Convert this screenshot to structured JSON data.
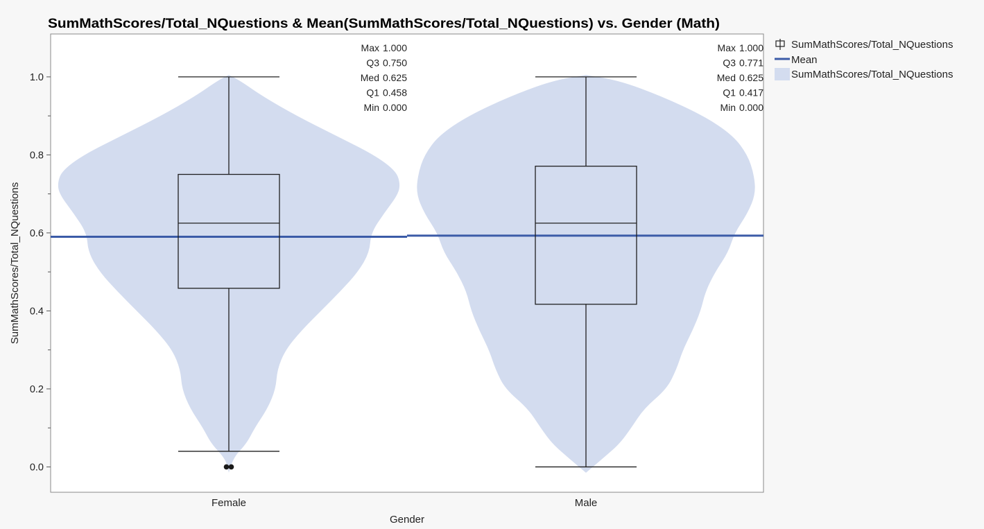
{
  "chart_data": {
    "type": "box",
    "title": "SumMathScores/Total_NQuestions & Mean(SumMathScores/Total_NQuestions) vs. Gender (Math)",
    "xlabel": "Gender",
    "ylabel": "SumMathScores/Total_NQuestions",
    "ylim": [
      -0.065,
      1.11
    ],
    "yticks": [
      "0.0",
      "0.2",
      "0.4",
      "0.6",
      "0.8",
      "1.0"
    ],
    "categories": [
      "Female",
      "Male"
    ],
    "groups": [
      {
        "name": "Female",
        "whisker_low": 0.04,
        "q1": 0.458,
        "median": 0.625,
        "q3": 0.75,
        "whisker_high": 1.0,
        "mean": 0.59,
        "outliers": [
          0.0,
          0.0
        ],
        "stats": [
          {
            "label": "Max",
            "value": "1.000"
          },
          {
            "label": "Q3",
            "value": "0.750"
          },
          {
            "label": "Med",
            "value": "0.625"
          },
          {
            "label": "Q1",
            "value": "0.458"
          },
          {
            "label": "Min",
            "value": "0.000"
          }
        ],
        "violin_y": [
          -0.015,
          0.02,
          0.06,
          0.1,
          0.15,
          0.2,
          0.25,
          0.3,
          0.35,
          0.4,
          0.45,
          0.5,
          0.55,
          0.6,
          0.65,
          0.7,
          0.73,
          0.76,
          0.8,
          0.85,
          0.9,
          0.95,
          0.99,
          1.005
        ],
        "violin_w": [
          0.0,
          0.02,
          0.11,
          0.16,
          0.24,
          0.29,
          0.3,
          0.35,
          0.45,
          0.57,
          0.69,
          0.8,
          0.87,
          0.88,
          0.96,
          1.05,
          1.06,
          1.03,
          0.9,
          0.66,
          0.42,
          0.21,
          0.07,
          0.0
        ]
      },
      {
        "name": "Male",
        "whisker_low": 0.0,
        "q1": 0.417,
        "median": 0.625,
        "q3": 0.771,
        "whisker_high": 1.0,
        "mean": 0.593,
        "outliers": [],
        "stats": [
          {
            "label": "Max",
            "value": "1.000"
          },
          {
            "label": "Q3",
            "value": "0.771"
          },
          {
            "label": "Med",
            "value": "0.625"
          },
          {
            "label": "Q1",
            "value": "0.417"
          },
          {
            "label": "Min",
            "value": "0.000"
          }
        ],
        "violin_y": [
          -0.015,
          0.02,
          0.06,
          0.1,
          0.15,
          0.2,
          0.25,
          0.3,
          0.35,
          0.4,
          0.45,
          0.5,
          0.55,
          0.6,
          0.65,
          0.7,
          0.75,
          0.8,
          0.85,
          0.9,
          0.95,
          0.99,
          1.005
        ],
        "violin_w": [
          0.0,
          0.1,
          0.21,
          0.28,
          0.36,
          0.5,
          0.56,
          0.6,
          0.66,
          0.71,
          0.74,
          0.8,
          0.88,
          0.92,
          1.0,
          1.05,
          1.04,
          1.0,
          0.91,
          0.73,
          0.47,
          0.21,
          0.0
        ]
      }
    ],
    "colors": {
      "violin": "#d3dcef",
      "mean_line": "#3b5ba7",
      "box": "#1f1f1f",
      "outlier": "#1a1a1a",
      "plot_background": "#ffffff",
      "page_background": "#f7f7f7",
      "frame": "#8a8a8a"
    },
    "legend": {
      "placement": "right",
      "entries": [
        {
          "label": "SumMathScores/Total_NQuestions",
          "symbol": "box"
        },
        {
          "label": "Mean",
          "symbol": "line"
        },
        {
          "label": "SumMathScores/Total_NQuestions",
          "symbol": "area"
        }
      ]
    },
    "grid": false
  }
}
